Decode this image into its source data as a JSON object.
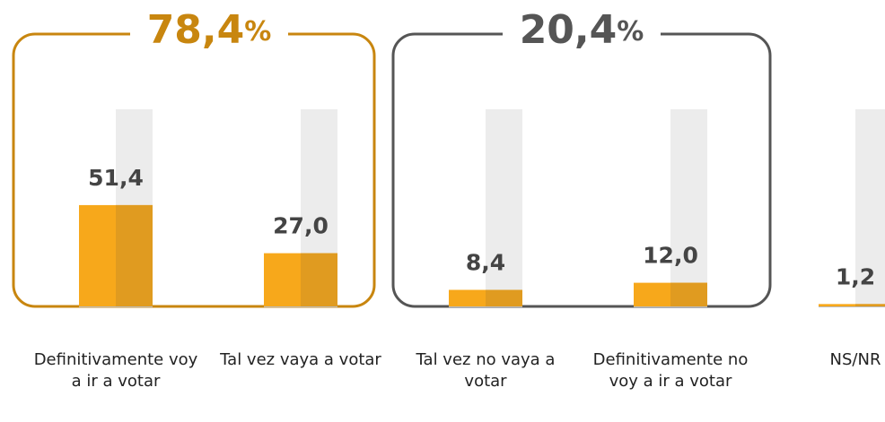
{
  "chart_data": {
    "type": "bar",
    "categories": [
      "Definitivamente voy a ir a votar",
      "Tal vez vaya a votar",
      "Tal vez no vaya a votar",
      "Definitivamente no voy a ir a votar",
      "NS/NR"
    ],
    "values": [
      51.4,
      27.0,
      8.4,
      12.0,
      1.2
    ],
    "value_labels": [
      "51,4",
      "27,0",
      "8,4",
      "12,0",
      "1,2"
    ],
    "ylim": [
      0,
      100
    ],
    "color": "#f7a81b",
    "shade_color": "#e09b20",
    "track_color": "#ececec",
    "annotations": [
      {
        "text": "78,4%",
        "color": "#c8860f"
      },
      {
        "text": "20,4%",
        "color": "#555555"
      }
    ]
  }
}
